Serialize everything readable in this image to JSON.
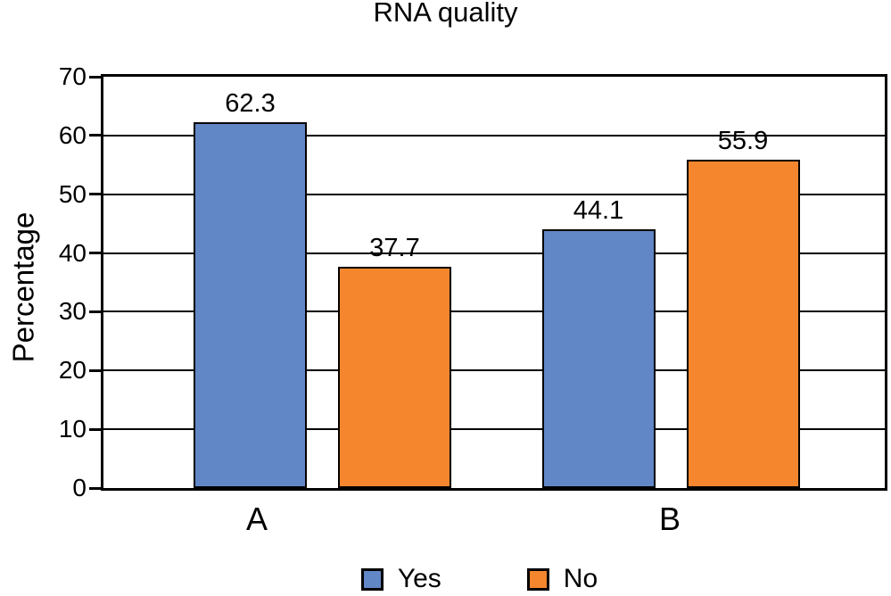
{
  "chart_data": {
    "type": "bar",
    "title": "RNA quality",
    "xlabel": "",
    "ylabel": "Percentage",
    "categories": [
      "A",
      "B"
    ],
    "series": [
      {
        "name": "Yes",
        "color": "#6287C6",
        "values": [
          62.3,
          44.1
        ],
        "labels": [
          "62.3",
          "44.1"
        ]
      },
      {
        "name": "No",
        "color": "#F5862D",
        "values": [
          37.7,
          55.9
        ],
        "labels": [
          "37.7",
          "55.9"
        ]
      }
    ],
    "ylim": [
      0,
      70
    ],
    "yticks": [
      0,
      10,
      20,
      30,
      40,
      50,
      60,
      70
    ],
    "grid": true,
    "bar_border_color": "#000000",
    "bar_value_labels": true,
    "legend": {
      "position": "bottom",
      "entries": [
        "Yes",
        "No"
      ]
    }
  }
}
